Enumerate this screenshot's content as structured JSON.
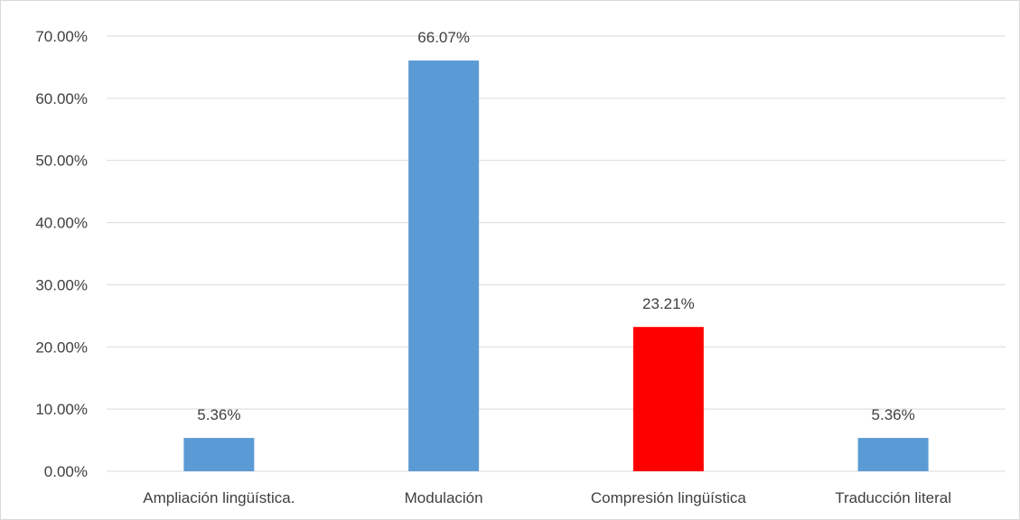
{
  "chart_data": {
    "type": "bar",
    "title": "",
    "xlabel": "",
    "ylabel": "",
    "categories": [
      "Ampliación lingüística.",
      "Modulación",
      "Compresión lingüística",
      "Traducción literal"
    ],
    "values": [
      5.36,
      66.07,
      23.21,
      5.36
    ],
    "data_labels": [
      "5.36%",
      "66.07%",
      "23.21%",
      "5.36%"
    ],
    "bar_colors": [
      "#5b9bd5",
      "#5b9bd5",
      "#ff0000",
      "#5b9bd5"
    ],
    "ylim": [
      0,
      70
    ],
    "yticks": [
      0,
      10,
      20,
      30,
      40,
      50,
      60,
      70
    ],
    "ytick_labels": [
      "0.00%",
      "10.00%",
      "20.00%",
      "30.00%",
      "40.00%",
      "50.00%",
      "60.00%",
      "70.00%"
    ],
    "grid": true,
    "legend": "none",
    "gridline_color": "#d9d9d9",
    "text_color": "#404040"
  }
}
